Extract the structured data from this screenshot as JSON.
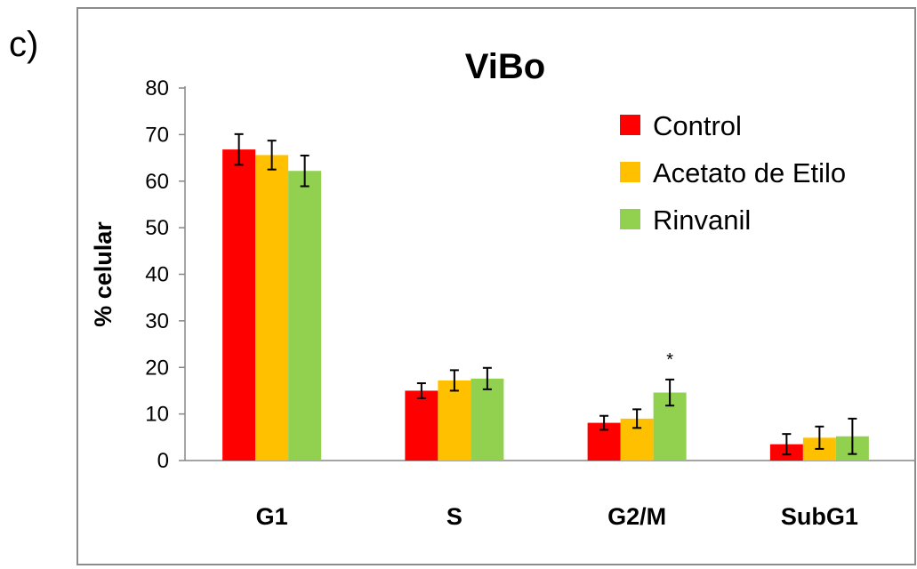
{
  "panel_label": "c)",
  "chart_data": {
    "type": "bar",
    "title": "ViBo",
    "xlabel": "",
    "ylabel": "% celular",
    "ylim": [
      0,
      80
    ],
    "yticks": [
      0,
      10,
      20,
      30,
      40,
      50,
      60,
      70,
      80
    ],
    "categories": [
      "G1",
      "S",
      "G2/M",
      "SubG1"
    ],
    "series": [
      {
        "name": "Control",
        "color": "#ff0000",
        "values": [
          66.8,
          15.0,
          8.1,
          3.5
        ],
        "errors": [
          3.3,
          1.6,
          1.5,
          2.2
        ]
      },
      {
        "name": "Acetato de Etilo",
        "color": "#ffc000",
        "values": [
          65.6,
          17.2,
          9.0,
          4.9
        ],
        "errors": [
          3.1,
          2.2,
          2.0,
          2.4
        ]
      },
      {
        "name": "Rinvanil",
        "color": "#92d050",
        "values": [
          62.2,
          17.6,
          14.6,
          5.2
        ],
        "errors": [
          3.3,
          2.3,
          2.8,
          3.8
        ]
      }
    ],
    "annotations": [
      {
        "category": "G2/M",
        "series": "Rinvanil",
        "text": "*"
      }
    ],
    "legend_position": "top-right",
    "grid": false
  }
}
